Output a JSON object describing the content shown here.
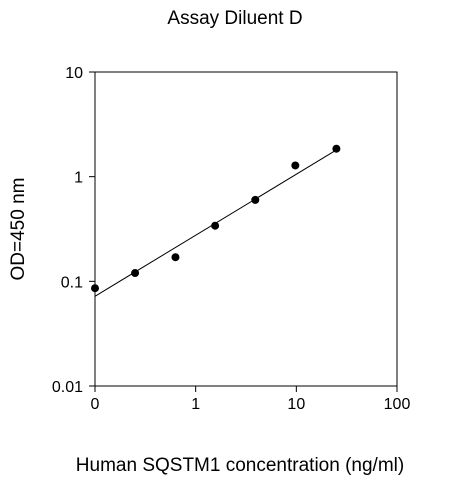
{
  "chart_data": {
    "type": "scatter",
    "title": "Assay Diluent D",
    "xlabel": "Human SQSTM1 concentration (ng/ml)",
    "ylabel": "OD=450 nm",
    "x_scale": "log",
    "y_scale": "log",
    "xlim": [
      0.1,
      100
    ],
    "ylim": [
      0.01,
      10
    ],
    "x_ticks": [
      0.1,
      1,
      10,
      100
    ],
    "x_tick_labels": [
      "0",
      "1",
      "10",
      "100"
    ],
    "y_ticks": [
      0.01,
      0.1,
      1,
      10
    ],
    "y_tick_labels": [
      "0.01",
      "0.1",
      "1",
      "10"
    ],
    "grid": false,
    "points": {
      "x": [
        0.1,
        0.25,
        0.63,
        1.56,
        3.91,
        9.77,
        25
      ],
      "y": [
        0.086,
        0.12,
        0.17,
        0.34,
        0.6,
        1.28,
        1.85
      ]
    },
    "fit_line": {
      "x": [
        0.1,
        25
      ],
      "y": [
        0.072,
        1.8
      ]
    }
  }
}
